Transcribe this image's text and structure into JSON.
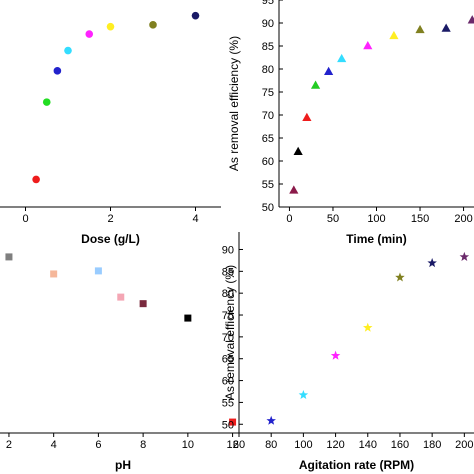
{
  "chart_data": [
    {
      "type": "scatter",
      "panel": "top-left",
      "title": "",
      "xlabel": "Dose (g/L)",
      "ylabel": "",
      "xlim": [
        -0.6,
        4.6
      ],
      "ylim": [
        50,
        95
      ],
      "x_ticks": [
        "0",
        "2",
        "4"
      ],
      "y_ticks": [],
      "marker": "circle",
      "grid": false,
      "points": [
        {
          "x": 0.25,
          "y": 56.0,
          "color": "#ee1c1c"
        },
        {
          "x": 0.5,
          "y": 72.8,
          "color": "#22dd22"
        },
        {
          "x": 0.75,
          "y": 79.6,
          "color": "#2222cc"
        },
        {
          "x": 1.0,
          "y": 84.0,
          "color": "#33ddff"
        },
        {
          "x": 1.5,
          "y": 87.6,
          "color": "#ff22ff"
        },
        {
          "x": 2.0,
          "y": 89.2,
          "color": "#ffee22"
        },
        {
          "x": 3.0,
          "y": 89.6,
          "color": "#808020"
        },
        {
          "x": 4.0,
          "y": 91.6,
          "color": "#1a1a66"
        }
      ]
    },
    {
      "type": "scatter",
      "panel": "top-right",
      "title": "",
      "xlabel": "Time (min)",
      "ylabel": "As removal efficiency (%)",
      "xlim": [
        -12,
        212
      ],
      "ylim": [
        50,
        95
      ],
      "x_ticks": [
        "0",
        "50",
        "100",
        "150",
        "200"
      ],
      "y_ticks": [
        "50",
        "55",
        "60",
        "65",
        "70",
        "75",
        "80",
        "85",
        "90",
        "95"
      ],
      "marker": "triangle",
      "grid": false,
      "points": [
        {
          "x": 5,
          "y": 53.7,
          "color": "#8b1a4a"
        },
        {
          "x": 10,
          "y": 62.1,
          "color": "#000000"
        },
        {
          "x": 20,
          "y": 69.5,
          "color": "#ee1c1c"
        },
        {
          "x": 30,
          "y": 76.5,
          "color": "#22cc22"
        },
        {
          "x": 45,
          "y": 79.5,
          "color": "#2222cc"
        },
        {
          "x": 60,
          "y": 82.3,
          "color": "#33ddff"
        },
        {
          "x": 90,
          "y": 85.1,
          "color": "#ff22ff"
        },
        {
          "x": 120,
          "y": 87.3,
          "color": "#ffee22"
        },
        {
          "x": 150,
          "y": 88.6,
          "color": "#808020"
        },
        {
          "x": 180,
          "y": 88.9,
          "color": "#1a1a66"
        },
        {
          "x": 210,
          "y": 90.7,
          "color": "#6b2a6b"
        }
      ]
    },
    {
      "type": "scatter",
      "panel": "bottom-left",
      "title": "",
      "xlabel": "pH",
      "ylabel": "",
      "xlim": [
        1.6,
        12.6
      ],
      "ylim": [
        48,
        94
      ],
      "x_ticks": [
        "2",
        "4",
        "6",
        "8",
        "10",
        "12"
      ],
      "y_ticks": [],
      "marker": "square",
      "grid": false,
      "points": [
        {
          "x": 2,
          "y": 88.3,
          "color": "#7f7f7f"
        },
        {
          "x": 4,
          "y": 84.4,
          "color": "#f5b79a"
        },
        {
          "x": 6,
          "y": 85.1,
          "color": "#99ccff"
        },
        {
          "x": 7,
          "y": 79.1,
          "color": "#f4a6b4"
        },
        {
          "x": 8,
          "y": 77.6,
          "color": "#7a2a3e"
        },
        {
          "x": 10,
          "y": 74.3,
          "color": "#000000"
        },
        {
          "x": 12,
          "y": 50.5,
          "color": "#ee1c1c"
        }
      ]
    },
    {
      "type": "scatter",
      "panel": "bottom-right",
      "title": "",
      "xlabel": "Agitation rate (RPM)",
      "ylabel": "As removal efficiency (%)",
      "xlim": [
        60,
        206
      ],
      "ylim": [
        48,
        94
      ],
      "x_ticks": [
        "60",
        "80",
        "100",
        "120",
        "140",
        "160",
        "180",
        "200"
      ],
      "y_ticks": [
        "50",
        "55",
        "60",
        "65",
        "70",
        "75",
        "80",
        "85",
        "90"
      ],
      "marker": "star",
      "grid": false,
      "points": [
        {
          "x": 80,
          "y": 50.8,
          "color": "#2222cc"
        },
        {
          "x": 100,
          "y": 56.7,
          "color": "#33ddff"
        },
        {
          "x": 120,
          "y": 65.7,
          "color": "#ff22ff"
        },
        {
          "x": 140,
          "y": 72.1,
          "color": "#ffee22"
        },
        {
          "x": 160,
          "y": 83.6,
          "color": "#808020"
        },
        {
          "x": 180,
          "y": 86.9,
          "color": "#1a1a66"
        },
        {
          "x": 200,
          "y": 88.3,
          "color": "#6b2a6b"
        }
      ]
    }
  ]
}
